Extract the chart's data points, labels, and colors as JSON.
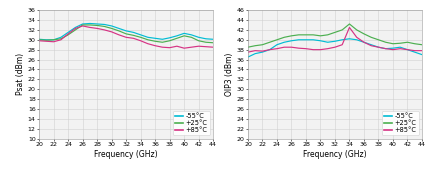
{
  "freq": [
    20,
    21,
    22,
    23,
    24,
    25,
    26,
    27,
    28,
    29,
    30,
    31,
    32,
    33,
    34,
    35,
    36,
    37,
    38,
    39,
    40,
    41,
    42,
    43,
    44
  ],
  "psat_m55": [
    30.1,
    30.0,
    30.0,
    30.5,
    31.5,
    32.5,
    33.2,
    33.3,
    33.2,
    33.1,
    32.8,
    32.3,
    31.8,
    31.5,
    31.0,
    30.5,
    30.3,
    30.1,
    30.4,
    30.8,
    31.3,
    31.0,
    30.5,
    30.2,
    30.1
  ],
  "psat_p25": [
    30.0,
    29.9,
    30.0,
    30.2,
    31.0,
    32.0,
    33.0,
    33.0,
    32.9,
    32.7,
    32.3,
    31.8,
    31.2,
    30.9,
    30.5,
    30.0,
    29.7,
    29.5,
    29.8,
    30.3,
    30.8,
    30.5,
    29.8,
    29.5,
    29.4
  ],
  "psat_p85": [
    29.8,
    29.7,
    29.6,
    30.0,
    31.2,
    32.3,
    32.8,
    32.5,
    32.3,
    32.0,
    31.6,
    31.0,
    30.5,
    30.3,
    29.8,
    29.2,
    28.8,
    28.5,
    28.4,
    28.7,
    28.3,
    28.5,
    28.7,
    28.6,
    28.5
  ],
  "oip3_m55": [
    36.5,
    37.2,
    37.5,
    38.0,
    39.0,
    39.5,
    39.8,
    40.0,
    40.0,
    40.0,
    39.8,
    39.5,
    39.7,
    40.0,
    40.2,
    40.0,
    39.5,
    39.0,
    38.5,
    38.2,
    38.3,
    38.5,
    38.0,
    37.5,
    37.0
  ],
  "oip3_p25": [
    38.5,
    38.8,
    39.0,
    39.5,
    40.0,
    40.5,
    40.8,
    41.0,
    41.0,
    41.0,
    40.8,
    41.0,
    41.5,
    42.0,
    43.2,
    42.0,
    41.2,
    40.5,
    40.0,
    39.5,
    39.2,
    39.3,
    39.5,
    39.2,
    39.0
  ],
  "oip3_p85": [
    37.5,
    37.8,
    37.7,
    38.0,
    38.2,
    38.5,
    38.5,
    38.3,
    38.2,
    38.0,
    38.0,
    38.2,
    38.5,
    39.0,
    42.5,
    40.5,
    39.5,
    38.8,
    38.5,
    38.2,
    38.0,
    38.2,
    38.0,
    37.8,
    37.8
  ],
  "color_m55": "#00bcd4",
  "color_p25": "#4caf50",
  "color_p85": "#d63384",
  "psat_ylabel": "Psat (dBm)",
  "oip3_ylabel": "OIP3 (dBm)",
  "xlabel": "Frequency (GHz)",
  "psat_ylim": [
    10,
    36
  ],
  "oip3_ylim": [
    20,
    46
  ],
  "psat_yticks": [
    10,
    12,
    14,
    16,
    18,
    20,
    22,
    24,
    26,
    28,
    30,
    32,
    34,
    36
  ],
  "oip3_yticks": [
    20,
    22,
    24,
    26,
    28,
    30,
    32,
    34,
    36,
    38,
    40,
    42,
    44,
    46
  ],
  "xticks": [
    20,
    22,
    24,
    26,
    28,
    30,
    32,
    34,
    36,
    38,
    40,
    42,
    44
  ],
  "xlim": [
    20,
    44
  ],
  "legend_labels": [
    "-55°C",
    "+25°C",
    "+85°C"
  ],
  "legend_fontsize": 4.8,
  "tick_fontsize": 4.5,
  "label_fontsize": 5.5,
  "linewidth": 0.85,
  "grid_color": "#d0d0d0",
  "bg_color": "#f2f2f2"
}
